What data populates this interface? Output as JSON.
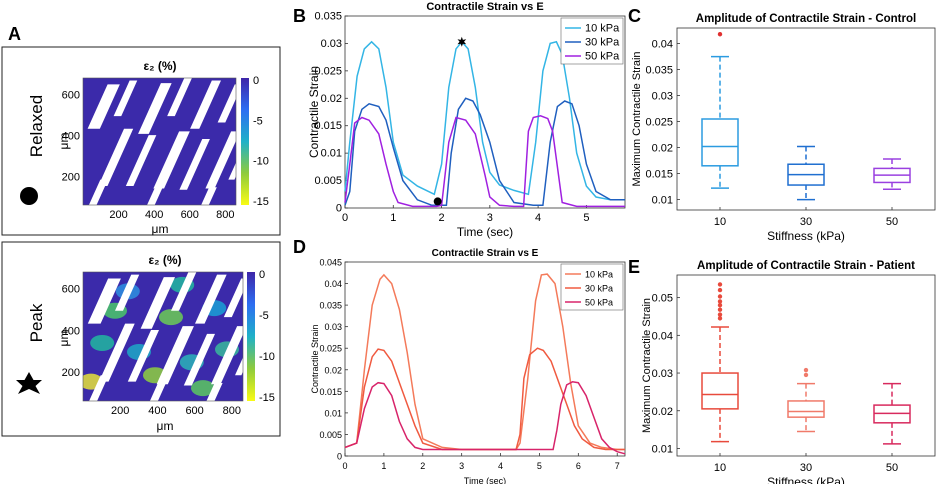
{
  "panel_letters": {
    "A": "A",
    "B": "B",
    "C": "C",
    "D": "D",
    "E": "E"
  },
  "panelA": {
    "relaxed": {
      "title": "ε₂ (%)",
      "state_label": "Relaxed",
      "marker_icon": "circle-icon",
      "xlabel": "μm",
      "ylabel": "μm",
      "xticks": [
        "200",
        "400",
        "600",
        "800"
      ],
      "yticks": [
        "200",
        "400",
        "600"
      ],
      "colorbar_ticks": [
        "0",
        "-5",
        "-10",
        "-15"
      ]
    },
    "peak": {
      "title": "ε₂ (%)",
      "state_label": "Peak",
      "marker_icon": "star-icon",
      "xlabel": "μm",
      "ylabel": "μm",
      "xticks": [
        "200",
        "400",
        "600",
        "800"
      ],
      "yticks": [
        "200",
        "400",
        "600"
      ],
      "colorbar_ticks": [
        "0",
        "-5",
        "-10",
        "-15"
      ]
    }
  },
  "chart_data": [
    {
      "id": "B",
      "type": "line",
      "title": "Contractile Strain vs E",
      "xlabel": "Time (sec)",
      "ylabel": "Contractile Strain",
      "xlim": [
        0,
        5.8
      ],
      "ylim": [
        0,
        0.035
      ],
      "xticks": [
        0,
        1,
        2,
        3,
        4,
        5
      ],
      "yticks": [
        0,
        0.005,
        0.01,
        0.015,
        0.02,
        0.025,
        0.03,
        0.035
      ],
      "ytick_labels": [
        "0",
        "0.005",
        "0.01",
        "0.015",
        "0.02",
        "0.025",
        "0.03",
        "0.035"
      ],
      "legend_position": "top-right",
      "series": [
        {
          "name": "10 kPa",
          "color": "#33b5e5",
          "x": [
            0,
            0.1,
            0.25,
            0.4,
            0.55,
            0.7,
            0.85,
            1.0,
            1.2,
            1.5,
            1.85,
            2.0,
            2.15,
            2.3,
            2.42,
            2.55,
            2.7,
            2.85,
            3.0,
            3.2,
            3.5,
            3.8,
            3.95,
            4.1,
            4.25,
            4.38,
            4.5,
            4.65,
            4.8,
            5.0,
            5.2,
            5.5,
            5.8
          ],
          "y": [
            0.003,
            0.012,
            0.024,
            0.029,
            0.0303,
            0.029,
            0.022,
            0.012,
            0.006,
            0.004,
            0.0025,
            0.008,
            0.022,
            0.029,
            0.0303,
            0.029,
            0.022,
            0.012,
            0.0065,
            0.0042,
            0.0032,
            0.0025,
            0.012,
            0.025,
            0.03,
            0.0303,
            0.028,
            0.02,
            0.01,
            0.004,
            0.002,
            0.0015,
            0.0015
          ]
        },
        {
          "name": "30 kPa",
          "color": "#1f5fbf",
          "x": [
            0,
            0.1,
            0.2,
            0.35,
            0.5,
            0.7,
            0.85,
            1.0,
            1.2,
            1.5,
            1.8,
            2.1,
            2.2,
            2.35,
            2.5,
            2.65,
            2.8,
            3.0,
            3.2,
            3.5,
            3.9,
            4.1,
            4.25,
            4.4,
            4.55,
            4.7,
            4.85,
            5.0,
            5.2,
            5.5,
            5.8
          ],
          "y": [
            0.0005,
            0.003,
            0.014,
            0.018,
            0.019,
            0.0185,
            0.016,
            0.011,
            0.005,
            0.0015,
            0.0005,
            0.0005,
            0.01,
            0.018,
            0.02,
            0.0195,
            0.017,
            0.012,
            0.005,
            0.001,
            0.0005,
            0.0005,
            0.012,
            0.0185,
            0.0195,
            0.019,
            0.015,
            0.008,
            0.003,
            0.0015,
            0.0015
          ]
        },
        {
          "name": "50 kPa",
          "color": "#a020e0",
          "x": [
            0,
            0.1,
            0.2,
            0.35,
            0.5,
            0.7,
            0.85,
            1.0,
            1.1,
            1.4,
            1.7,
            1.9,
            2.0,
            2.15,
            2.3,
            2.5,
            2.7,
            2.9,
            3.0,
            3.2,
            3.5,
            3.7,
            3.8,
            3.9,
            4.05,
            4.2,
            4.3,
            4.5,
            4.8,
            5.0,
            5.2,
            5.5,
            5.8
          ],
          "y": [
            0.001,
            0.008,
            0.0155,
            0.0165,
            0.016,
            0.0135,
            0.008,
            0.003,
            0.001,
            0.0003,
            0.0003,
            0.0003,
            0.0005,
            0.012,
            0.0165,
            0.016,
            0.0135,
            0.006,
            0.002,
            0.0005,
            0.0003,
            0.0003,
            0.014,
            0.0165,
            0.0168,
            0.0163,
            0.014,
            0.001,
            0.0003,
            0.0003,
            0.0003,
            0.0003,
            0.0003
          ]
        }
      ],
      "annotations": [
        {
          "type": "star-marker",
          "x": 2.42,
          "y": 0.0303
        },
        {
          "type": "circle-marker",
          "x": 1.92,
          "y": 0.0012
        }
      ]
    },
    {
      "id": "C",
      "type": "box",
      "title": "Amplitude of Contractile Strain - Control",
      "xlabel": "Stiffness (kPa)",
      "ylabel": "Maximum Contractile Strain",
      "categories": [
        "10",
        "30",
        "50"
      ],
      "ylim": [
        0.008,
        0.043
      ],
      "yticks": [
        0.01,
        0.015,
        0.02,
        0.025,
        0.03,
        0.035,
        0.04
      ],
      "ytick_labels": [
        "0.01",
        "0.015",
        "0.02",
        "0.025",
        "0.03",
        "0.035",
        "0.04"
      ],
      "boxes": [
        {
          "name": "10",
          "color": "#2b9be0",
          "q1": 0.0165,
          "median": 0.0202,
          "q3": 0.0255,
          "whisker_low": 0.0122,
          "whisker_high": 0.0375,
          "outliers": [
            0.0418
          ]
        },
        {
          "name": "30",
          "color": "#1f6fd0",
          "q1": 0.0128,
          "median": 0.0148,
          "q3": 0.0168,
          "whisker_low": 0.01,
          "whisker_high": 0.0202,
          "outliers": []
        },
        {
          "name": "50",
          "color": "#9a40e0",
          "q1": 0.0133,
          "median": 0.0147,
          "q3": 0.016,
          "whisker_low": 0.012,
          "whisker_high": 0.0178,
          "outliers": []
        }
      ]
    },
    {
      "id": "D",
      "type": "line",
      "title": "Contractile Strain vs E",
      "xlabel": "Time (sec)",
      "ylabel": "Contractile Strain",
      "xlim": [
        0,
        7.2
      ],
      "ylim": [
        0,
        0.045
      ],
      "xticks": [
        0,
        1,
        2,
        3,
        4,
        5,
        6,
        7
      ],
      "yticks": [
        0,
        0.005,
        0.01,
        0.015,
        0.02,
        0.025,
        0.03,
        0.035,
        0.04,
        0.045
      ],
      "ytick_labels": [
        "0",
        "0.005",
        "0.01",
        "0.015",
        "0.02",
        "0.025",
        "0.03",
        "0.035",
        "0.04",
        "0.045"
      ],
      "legend_position": "top-right",
      "series": [
        {
          "name": "10 kPa",
          "color": "#f47a5a",
          "x": [
            0,
            0.3,
            0.5,
            0.7,
            0.9,
            1.0,
            1.2,
            1.4,
            1.6,
            1.8,
            2.0,
            2.5,
            3.0,
            3.5,
            4.0,
            4.4,
            4.5,
            4.7,
            4.9,
            5.05,
            5.2,
            5.4,
            5.6,
            5.8,
            6.0,
            6.3,
            6.6,
            7.0,
            7.2
          ],
          "y": [
            0.002,
            0.003,
            0.02,
            0.035,
            0.041,
            0.042,
            0.04,
            0.034,
            0.024,
            0.012,
            0.004,
            0.002,
            0.0015,
            0.0015,
            0.0015,
            0.0015,
            0.003,
            0.018,
            0.036,
            0.042,
            0.0422,
            0.04,
            0.03,
            0.017,
            0.007,
            0.003,
            0.002,
            0.0015,
            0.0015
          ]
        },
        {
          "name": "30 kPa",
          "color": "#f05a40",
          "x": [
            0,
            0.3,
            0.5,
            0.7,
            0.85,
            1.0,
            1.2,
            1.4,
            1.6,
            1.8,
            2.0,
            2.5,
            3.0,
            3.5,
            4.0,
            4.4,
            4.5,
            4.6,
            4.75,
            4.95,
            5.1,
            5.3,
            5.5,
            5.7,
            5.9,
            6.1,
            6.4,
            6.7,
            7.2
          ],
          "y": [
            0.002,
            0.003,
            0.016,
            0.023,
            0.0248,
            0.0245,
            0.022,
            0.017,
            0.012,
            0.007,
            0.003,
            0.0015,
            0.0015,
            0.0015,
            0.0015,
            0.0015,
            0.005,
            0.018,
            0.0235,
            0.025,
            0.0245,
            0.022,
            0.017,
            0.012,
            0.007,
            0.004,
            0.002,
            0.0015,
            0.0015
          ]
        },
        {
          "name": "50 kPa",
          "color": "#d8246a",
          "x": [
            0,
            0.3,
            0.5,
            0.7,
            0.85,
            1.0,
            1.2,
            1.4,
            1.6,
            1.8,
            2.0,
            2.5,
            3.0,
            3.5,
            4.0,
            4.5,
            5.0,
            5.35,
            5.45,
            5.55,
            5.7,
            5.85,
            6.0,
            6.2,
            6.4,
            6.6,
            6.8,
            7.0,
            7.2
          ],
          "y": [
            0.002,
            0.003,
            0.011,
            0.016,
            0.017,
            0.0168,
            0.014,
            0.008,
            0.004,
            0.002,
            0.0015,
            0.0015,
            0.0015,
            0.0015,
            0.0015,
            0.0015,
            0.0015,
            0.0015,
            0.006,
            0.012,
            0.0165,
            0.0172,
            0.017,
            0.014,
            0.009,
            0.004,
            0.002,
            0.001,
            0.0005
          ]
        }
      ]
    },
    {
      "id": "E",
      "type": "box",
      "title": "Amplitude of Contractile Strain - Patient",
      "xlabel": "Stiffness (kPa)",
      "ylabel": "Maximum Contractile Strain",
      "categories": [
        "10",
        "30",
        "50"
      ],
      "ylim": [
        0.008,
        0.056
      ],
      "yticks": [
        0.01,
        0.02,
        0.03,
        0.04,
        0.05
      ],
      "ytick_labels": [
        "0.01",
        "0.02",
        "0.03",
        "0.04",
        "0.05"
      ],
      "boxes": [
        {
          "name": "10",
          "color": "#e84a3c",
          "q1": 0.0205,
          "median": 0.0243,
          "q3": 0.03,
          "whisker_low": 0.0118,
          "whisker_high": 0.0422,
          "outliers": [
            0.0445,
            0.0455,
            0.0468,
            0.048,
            0.049,
            0.0503,
            0.052,
            0.0535
          ]
        },
        {
          "name": "30",
          "color": "#f07a6a",
          "q1": 0.0183,
          "median": 0.0198,
          "q3": 0.0226,
          "whisker_low": 0.0145,
          "whisker_high": 0.0272,
          "outliers": [
            0.0295,
            0.0308
          ]
        },
        {
          "name": "50",
          "color": "#d82a5e",
          "q1": 0.0168,
          "median": 0.0193,
          "q3": 0.0215,
          "whisker_low": 0.0112,
          "whisker_high": 0.0272,
          "outliers": []
        }
      ]
    }
  ]
}
